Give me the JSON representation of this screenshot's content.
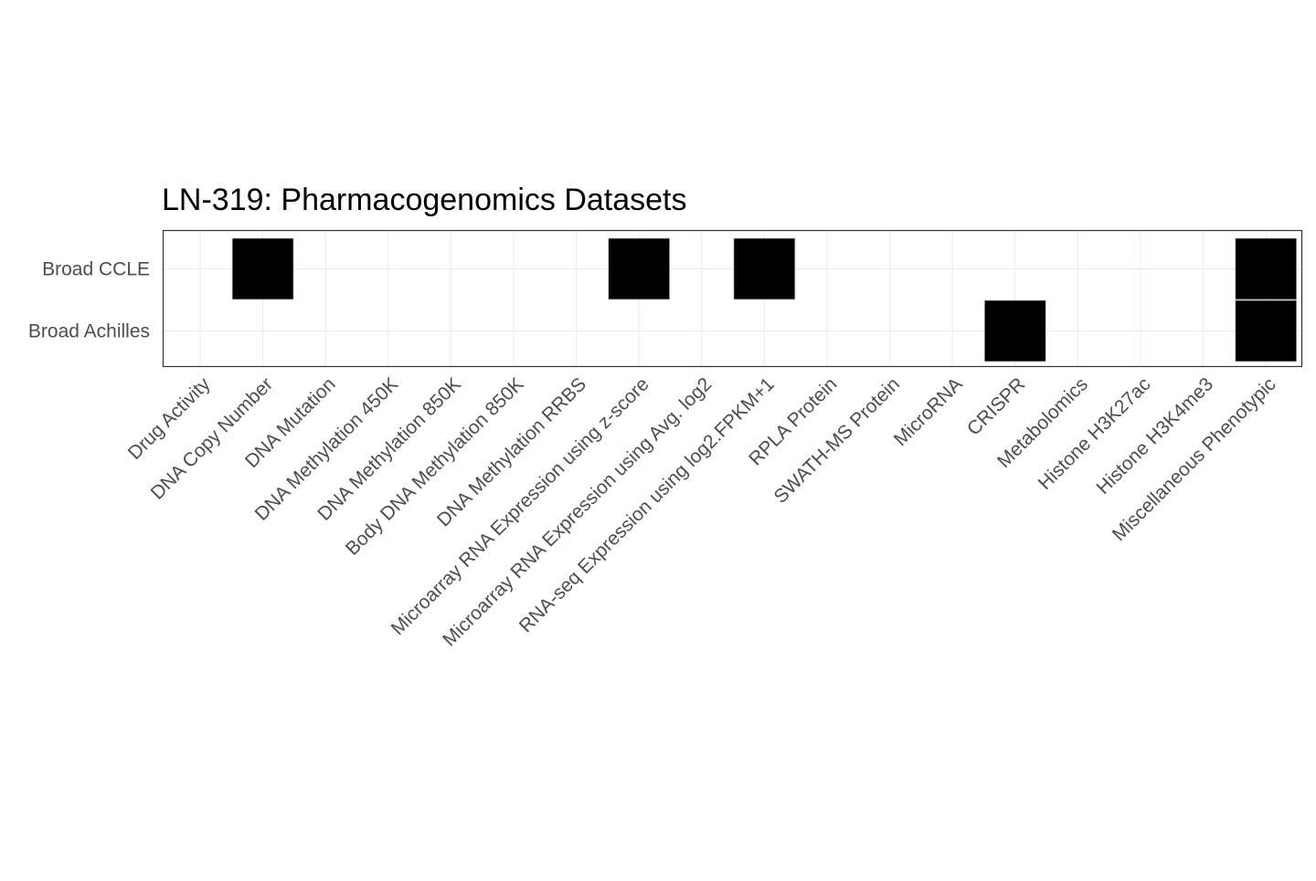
{
  "chart_data": {
    "type": "heatmap",
    "title": "LN-319: Pharmacogenomics Datasets",
    "xlabel": "",
    "ylabel": "",
    "x_categories": [
      "Drug Activity",
      "DNA Copy Number",
      "DNA Mutation",
      "DNA Methylation 450K",
      "DNA Methylation 850K",
      "Body DNA Methylation 850K",
      "DNA Methylation RRBS",
      "Microarray RNA Expression using z-score",
      "Microarray RNA Expression using Avg. log2",
      "RNA-seq Expression using log2.FPKM+1",
      "RPLA Protein",
      "SWATH-MS Protein",
      "MicroRNA",
      "CRISPR",
      "Metabolomics",
      "Histone H3K27ac",
      "Histone H3K4me3",
      "Miscellaneous Phenotypic"
    ],
    "y_categories": [
      "Broad CCLE",
      "Broad Achilles"
    ],
    "values": [
      [
        0,
        1,
        0,
        0,
        0,
        0,
        0,
        1,
        0,
        1,
        0,
        0,
        0,
        0,
        0,
        0,
        0,
        1
      ],
      [
        0,
        0,
        0,
        0,
        0,
        0,
        0,
        0,
        0,
        0,
        0,
        0,
        0,
        1,
        0,
        0,
        0,
        1
      ]
    ],
    "fill_color": "#000000",
    "tile_border_color": "#bfbfbf",
    "background_color": "#ffffff",
    "grid_color": "#ebebeb",
    "axis_text_color": "#4d4d4d",
    "title_color": "#000000",
    "grid": true,
    "legend": "none"
  }
}
